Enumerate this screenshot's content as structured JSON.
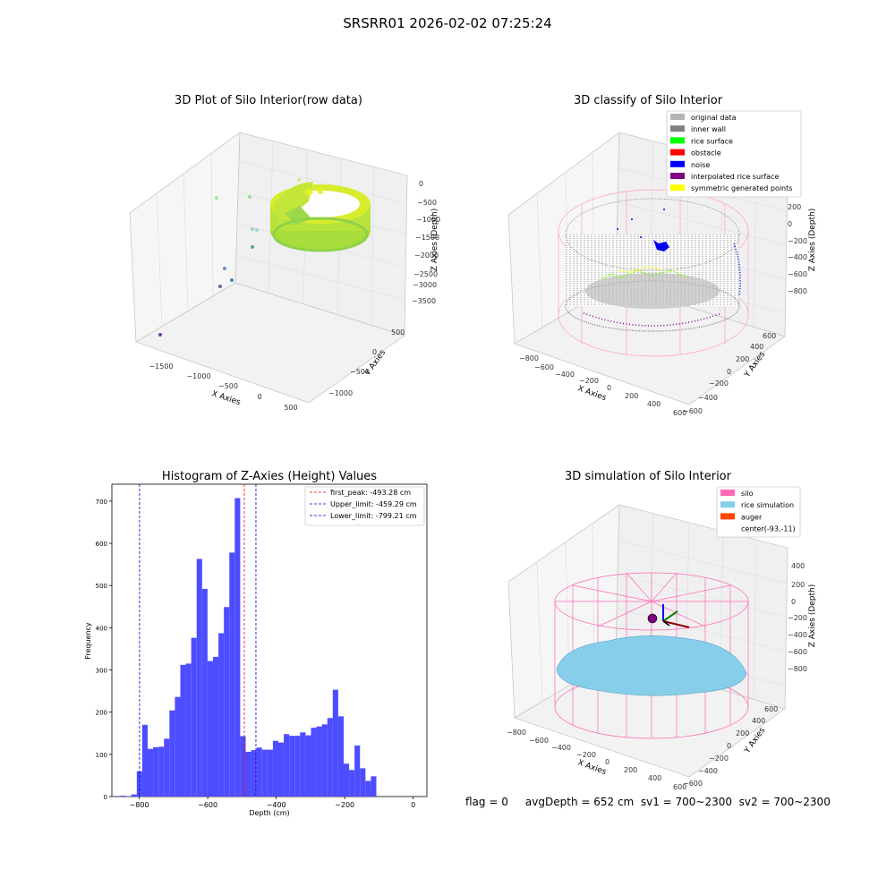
{
  "suptitle": "SRSRR01 2026-02-02 07:25:24",
  "status_line": "flag = 0     avgDepth = 652 cm  sv1 = 700~2300  sv2 = 700~2300",
  "colors": {
    "hist_bar": "#4d4dff",
    "first_peak": "#ff0000",
    "limits": "#0000cc",
    "original": "#b3b3b3",
    "inner_wall": "#808080",
    "rice_surface": "#00ff00",
    "obstacle": "#ff0000",
    "noise": "#0000ff",
    "interp": "#800080",
    "symmetric": "#ffff00",
    "silo": "#ff69b4",
    "rice_sim": "#87ceeb",
    "auger": "#ff4500"
  },
  "panels": {
    "raw": {
      "title": "3D Plot of Silo Interior(row data)",
      "xlabel": "X Axies",
      "ylabel": "Y Axies",
      "zlabel": "Z Axies (Depth)",
      "xticks": [
        "−1500",
        "−1000",
        "−500",
        "0",
        "500"
      ],
      "yticks": [
        "500",
        "0",
        "−500",
        "−1000"
      ],
      "zticks": [
        "0",
        "−500",
        "−1000",
        "−1500",
        "−2000",
        "−2500",
        "−3000",
        "−3500"
      ]
    },
    "classify": {
      "title": "3D classify of Silo Interior",
      "xlabel": "X Axies",
      "ylabel": "Y Axies",
      "zlabel": "Z Axies (Depth)",
      "xticks": [
        "−800",
        "−600",
        "−400",
        "−200",
        "0",
        "200",
        "400",
        "600"
      ],
      "yticks": [
        "600",
        "400",
        "200",
        "0",
        "−200",
        "−400",
        "−600"
      ],
      "zticks": [
        "200",
        "0",
        "−200",
        "−400",
        "−600",
        "−800"
      ],
      "legend": [
        {
          "label": "original data",
          "color": "#b3b3b3"
        },
        {
          "label": "inner wall",
          "color": "#808080"
        },
        {
          "label": "rice surface",
          "color": "#00ff00"
        },
        {
          "label": "obstacle",
          "color": "#ff0000"
        },
        {
          "label": "noise",
          "color": "#0000ff"
        },
        {
          "label": "interpolated rice surface",
          "color": "#800080"
        },
        {
          "label": "symmetric generated points",
          "color": "#ffff00"
        }
      ]
    },
    "simulation": {
      "title": "3D simulation of Silo Interior",
      "xlabel": "X Axies",
      "ylabel": "Y Axies",
      "zlabel": "Z Axies (Depth)",
      "xticks": [
        "−800",
        "−600",
        "−400",
        "−200",
        "0",
        "200",
        "400",
        "600"
      ],
      "yticks": [
        "600",
        "400",
        "200",
        "0",
        "−200",
        "−400",
        "−600"
      ],
      "zticks": [
        "400",
        "200",
        "0",
        "−200",
        "−400",
        "−600",
        "−800"
      ],
      "legend": [
        {
          "label": "silo",
          "color": "#ff69b4"
        },
        {
          "label": "rice simulation",
          "color": "#87ceeb"
        },
        {
          "label": "auger",
          "color": "#ff4500"
        },
        {
          "label": "center(-93,-11)",
          "color": ""
        }
      ]
    }
  },
  "chart_data": {
    "type": "bar",
    "title": "Histogram of Z-Axies (Height) Values",
    "xlabel": "Depth (cm)",
    "ylabel": "Frequency",
    "xlim": [
      -880,
      40
    ],
    "ylim": [
      0,
      740
    ],
    "xticks": [
      -800,
      -600,
      -400,
      -200,
      0
    ],
    "yticks": [
      0,
      100,
      200,
      300,
      400,
      500,
      600,
      700
    ],
    "bin_width": 15.9,
    "bin_start": -855,
    "values": [
      2,
      1,
      5,
      60,
      170,
      113,
      117,
      118,
      137,
      204,
      236,
      312,
      315,
      376,
      563,
      492,
      321,
      331,
      387,
      449,
      578,
      707,
      143,
      106,
      110,
      116,
      111,
      111,
      132,
      128,
      148,
      144,
      144,
      152,
      145,
      163,
      166,
      171,
      186,
      253,
      190,
      78,
      63,
      121,
      67,
      37,
      48
    ],
    "vlines": [
      {
        "name": "first_peak: -493.28 cm",
        "x": -493.28,
        "color": "#ff0000"
      },
      {
        "name": "Upper_limit: -459.29 cm",
        "x": -459.29,
        "color": "#0000cc"
      },
      {
        "name": "Lower_limit: -799.21 cm",
        "x": -799.21,
        "color": "#0000cc"
      }
    ],
    "legend_position": "top-right"
  }
}
